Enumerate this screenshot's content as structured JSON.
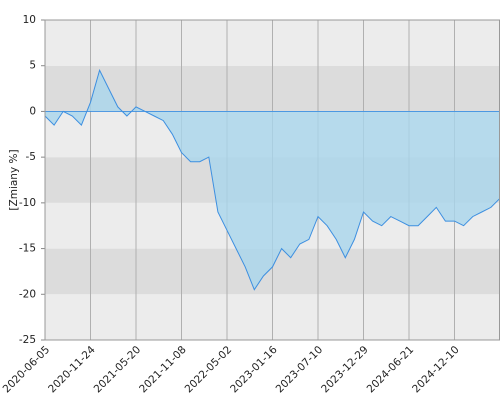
{
  "chart_data": {
    "type": "area",
    "y_label": "[Zmiany %]",
    "categories": [
      "2020-06-05",
      null,
      null,
      null,
      null,
      "2020-11-24",
      null,
      null,
      null,
      null,
      "2021-05-20",
      null,
      null,
      null,
      null,
      "2021-11-08",
      null,
      null,
      null,
      null,
      "2022-05-02",
      null,
      null,
      null,
      null,
      "2023-01-16",
      null,
      null,
      null,
      null,
      "2023-07-10",
      null,
      null,
      null,
      null,
      "2023-12-29",
      null,
      null,
      null,
      null,
      "2024-06-21",
      null,
      null,
      null,
      null,
      "2024-12-10",
      null,
      null,
      null,
      null,
      null
    ],
    "values": [
      -0.5,
      -1.5,
      0,
      -0.5,
      -1.5,
      1,
      4.5,
      2.5,
      0.5,
      -0.5,
      0.5,
      0,
      -0.5,
      -1,
      -2.5,
      -4.5,
      -5.5,
      -5.5,
      -5,
      -11,
      -13,
      -15,
      -17,
      -19.5,
      -18,
      -17,
      -15,
      -16,
      -14.5,
      -14,
      -11.5,
      -12.5,
      -14,
      -16,
      -14,
      -11,
      -12,
      -12.5,
      -11.5,
      -12,
      -12.5,
      -12.5,
      -11.5,
      -10.5,
      -12,
      -12,
      -12.5,
      -11.5,
      -11,
      -10.5,
      -9.5
    ],
    "color": "#3d8fe0",
    "fill": "#a9d6ec",
    "ylim": [
      -25,
      10
    ],
    "yticks": [
      -25,
      -20,
      -15,
      -10,
      -5,
      0,
      5,
      10
    ],
    "band_colors": [
      "#ececec",
      "#dcdcdc"
    ],
    "grid": true
  }
}
